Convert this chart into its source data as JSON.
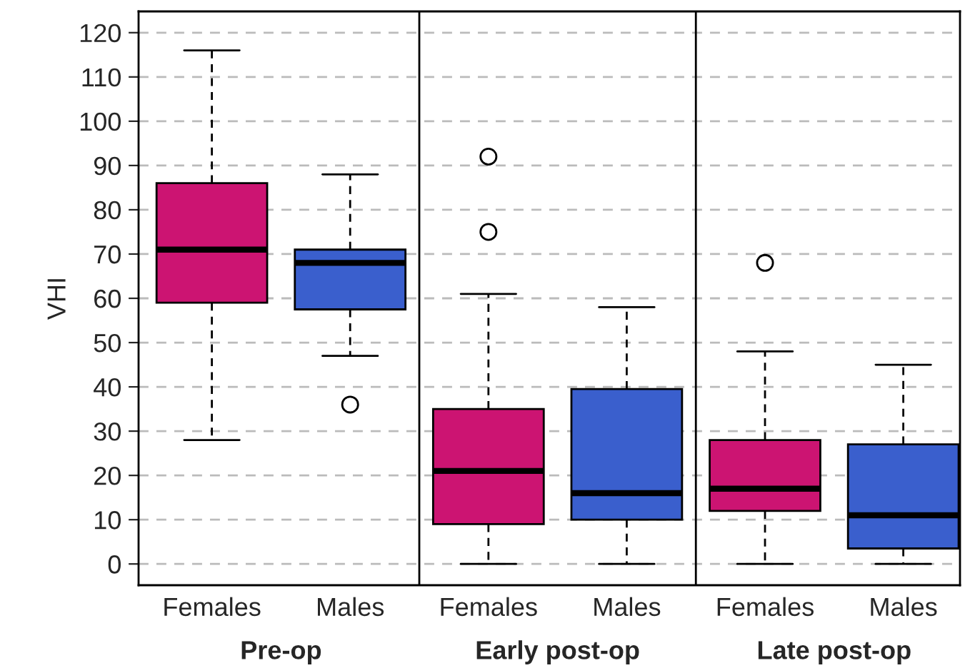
{
  "chart_data": {
    "type": "box",
    "ylabel": "VHI",
    "categories": [
      "Pre-op",
      "Early post-op",
      "Late post-op"
    ],
    "series": [
      {
        "name": "Females",
        "color": "#cc1472",
        "boxes": [
          {
            "low": 28,
            "q1": 59,
            "median": 71,
            "q3": 86,
            "high": 116
          },
          {
            "low": 0,
            "q1": 9,
            "median": 21,
            "q3": 35,
            "high": 61,
            "outliers": [
              75,
              92
            ]
          },
          {
            "low": 0,
            "q1": 12,
            "median": 17,
            "q3": 28,
            "high": 48,
            "outliers": [
              68
            ]
          }
        ]
      },
      {
        "name": "Males",
        "color": "#3a5fcd",
        "boxes": [
          {
            "low": 47,
            "q1": 57.5,
            "median": 68,
            "q3": 71,
            "high": 88,
            "outliers": [
              36
            ]
          },
          {
            "low": 0,
            "q1": 10,
            "median": 16,
            "q3": 39.5,
            "high": 58
          },
          {
            "low": 0,
            "q1": 3.5,
            "median": 11,
            "q3": 27,
            "high": 45
          }
        ]
      }
    ],
    "ylim": [
      -4.8,
      124.8
    ],
    "yticks": [
      0,
      10,
      20,
      30,
      40,
      50,
      60,
      70,
      80,
      90,
      100,
      110,
      120
    ],
    "grid": "y",
    "legend": false
  }
}
